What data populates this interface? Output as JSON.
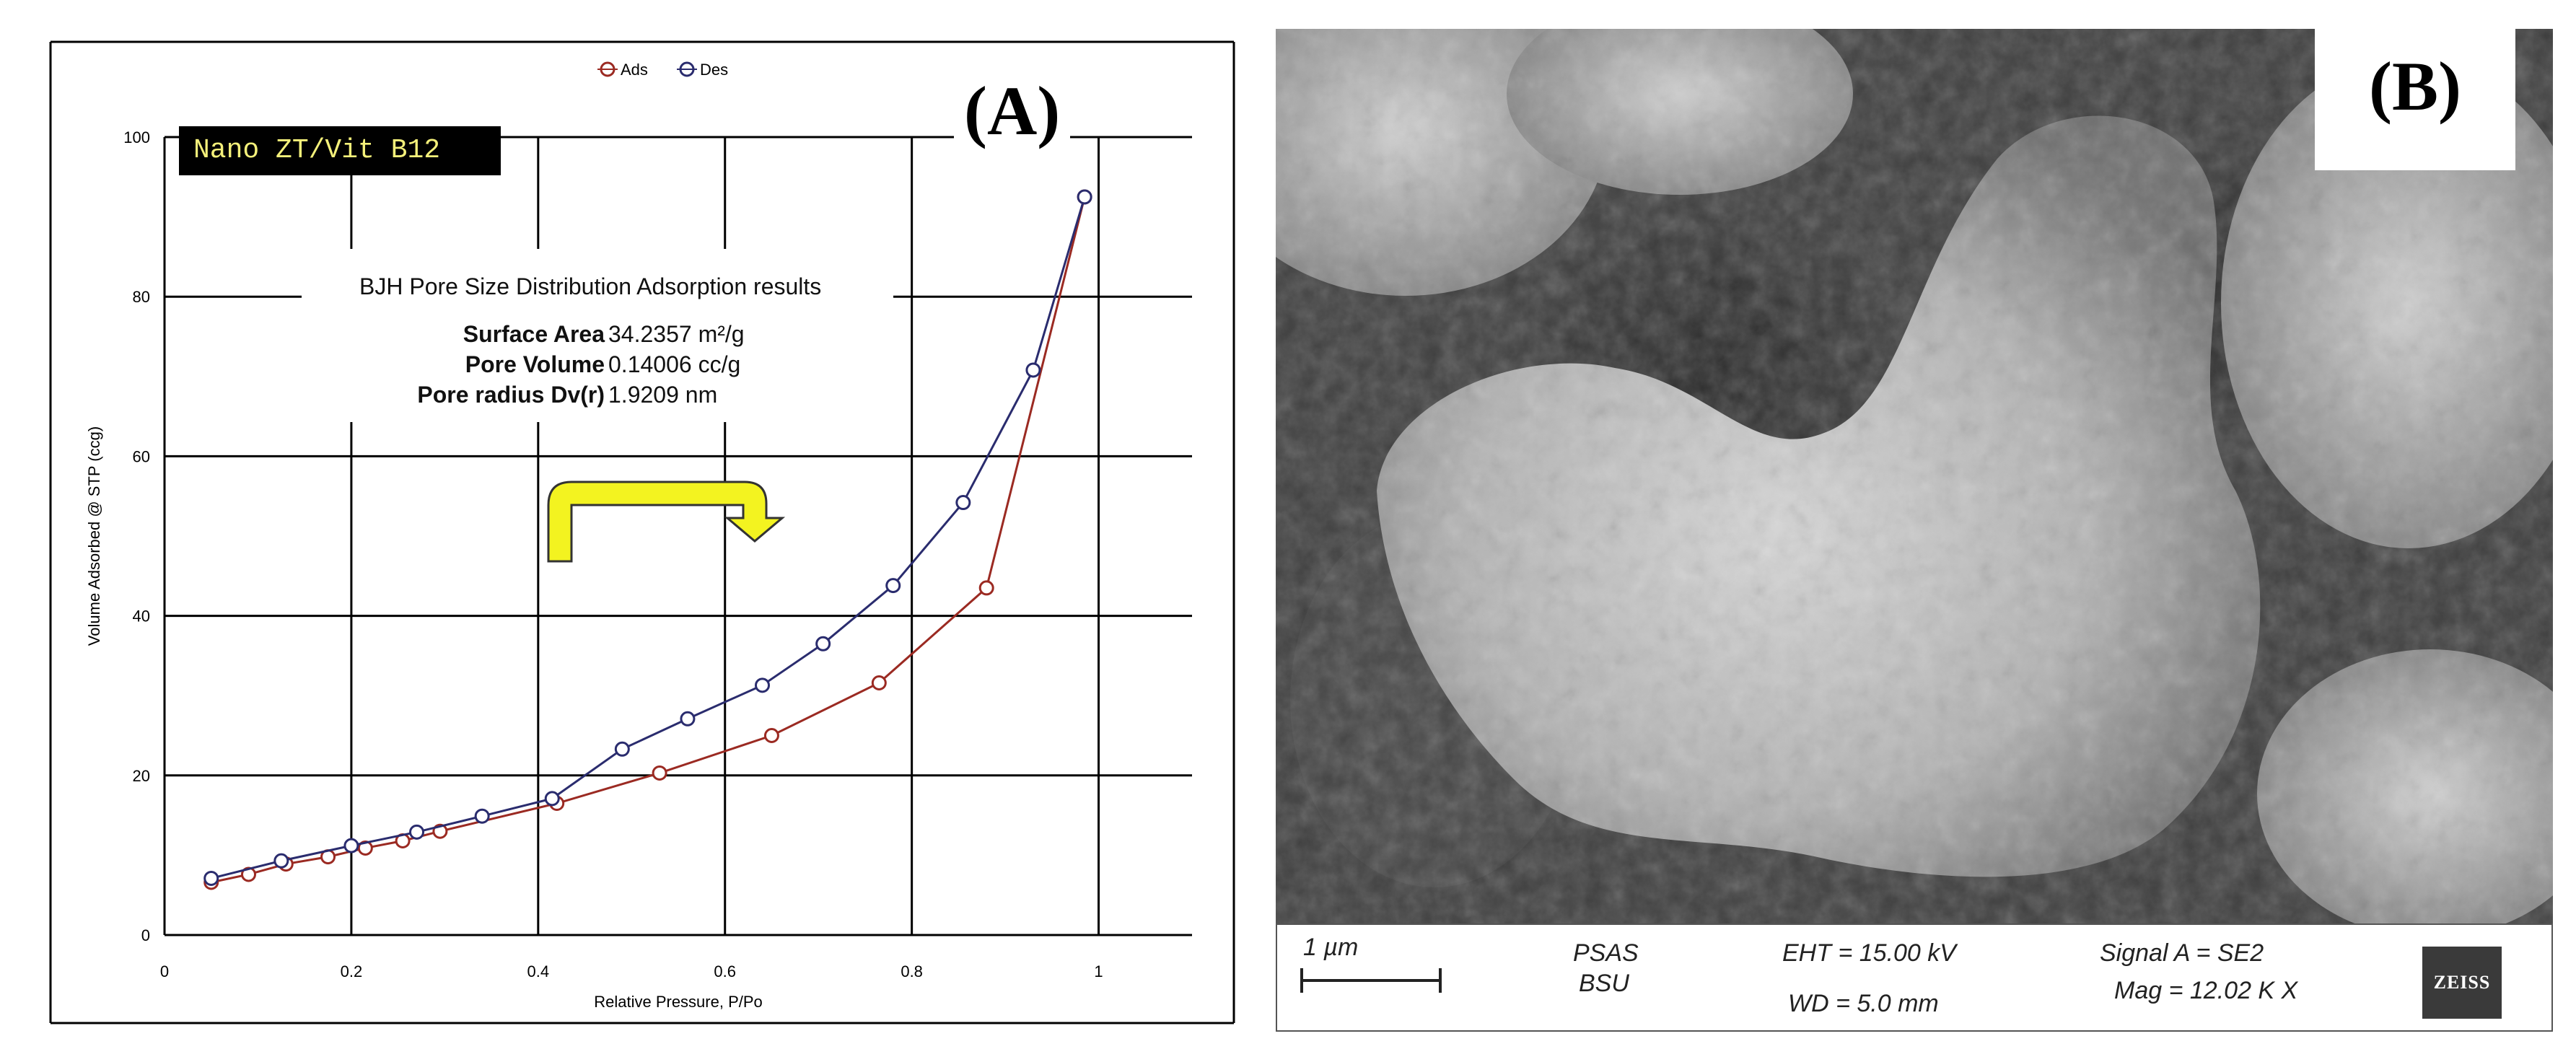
{
  "panel_a": {
    "label": "(A)",
    "sample_tag": "Nano ZT/Vit B12",
    "bjh": {
      "title": "BJH Pore Size Distribution Adsorption results",
      "rows": [
        {
          "key": "Surface Area",
          "value": "34.2357 m²/g"
        },
        {
          "key": "Pore Volume",
          "value": "0.14006 cc/g"
        },
        {
          "key": "Pore radius Dv(r)",
          "value": "1.9209 nm"
        }
      ]
    }
  },
  "chart_data": {
    "type": "line",
    "xlabel": "Relative Pressure, P/Po",
    "ylabel": "Volume Adsorbed @ STP (ccg)",
    "xlim": [
      0,
      1.1
    ],
    "ylim": [
      0,
      100
    ],
    "xticks": [
      0,
      0.2,
      0.4,
      0.6,
      0.8,
      1
    ],
    "xtick_labels": [
      "0",
      "0.2",
      "0.4",
      "0.6",
      "0.8",
      "1"
    ],
    "yticks": [
      0,
      20,
      40,
      60,
      80,
      100
    ],
    "ytick_labels": [
      "0",
      "20",
      "40",
      "60",
      "80",
      "100"
    ],
    "grid": true,
    "legend_position": "top",
    "series": [
      {
        "name": "Ads",
        "color": "#9b2a22",
        "x": [
          0.05,
          0.09,
          0.13,
          0.175,
          0.215,
          0.255,
          0.295,
          0.42,
          0.53,
          0.65,
          0.765,
          0.88,
          0.985
        ],
        "y": [
          6.6,
          7.6,
          8.9,
          9.8,
          10.9,
          11.8,
          13.0,
          16.5,
          20.3,
          25.0,
          31.6,
          43.5,
          92.5
        ]
      },
      {
        "name": "Des",
        "color": "#2a2c6e",
        "x": [
          0.05,
          0.125,
          0.2,
          0.27,
          0.34,
          0.415,
          0.49,
          0.56,
          0.64,
          0.705,
          0.78,
          0.855,
          0.93,
          0.985
        ],
        "y": [
          7.1,
          9.3,
          11.2,
          12.9,
          14.9,
          17.1,
          23.3,
          27.1,
          31.3,
          36.5,
          43.8,
          54.2,
          70.8,
          92.5
        ]
      }
    ]
  },
  "panel_b": {
    "label": "(B)",
    "scale_bar_label": "1 µm",
    "lab_line1": "PSAS",
    "lab_line2": "BSU",
    "eht": "EHT = 15.00 kV",
    "wd": "WD =  5.0 mm",
    "signal": "Signal A = SE2",
    "mag": "Mag =   12.02 K X",
    "logo": "ZEISS"
  }
}
